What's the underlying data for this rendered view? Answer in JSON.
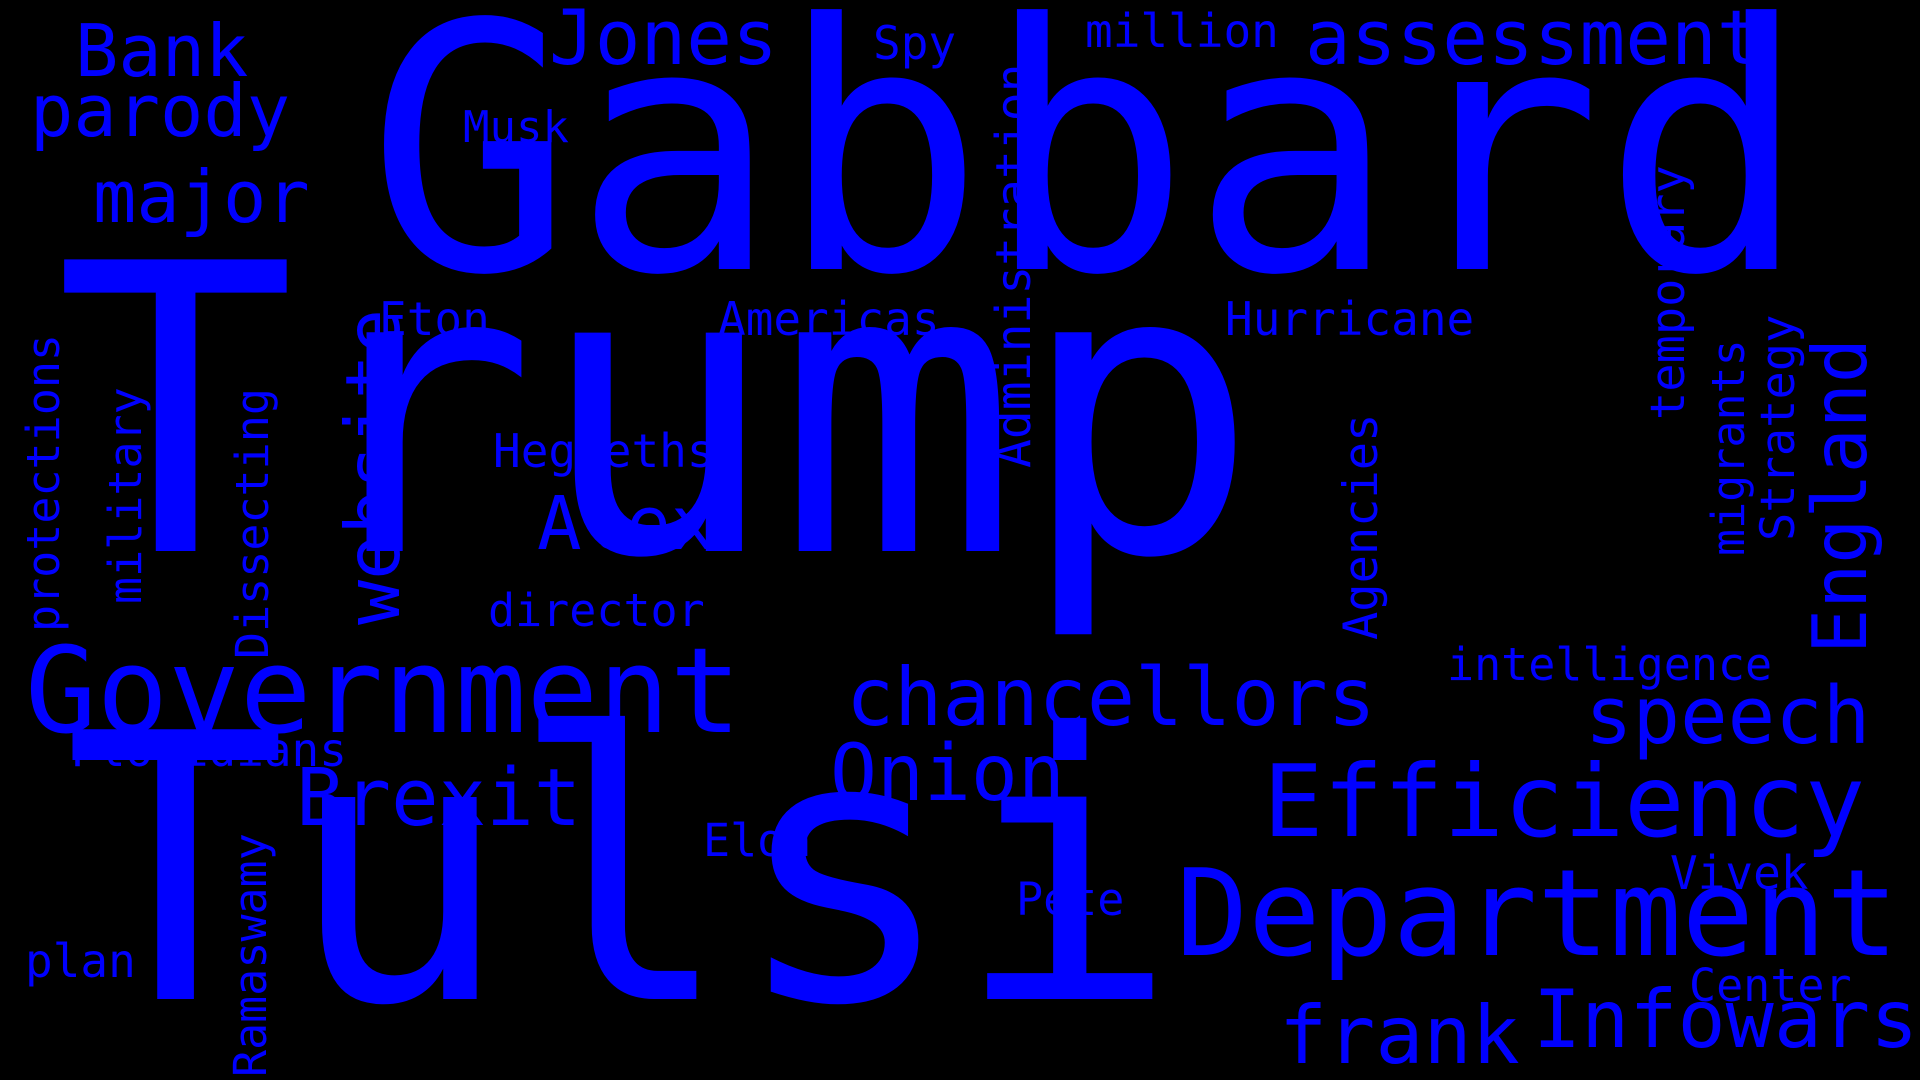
{
  "colors": {
    "background": "#000000",
    "text": "#0000FF"
  },
  "words": {
    "gabbard": "Gabbard",
    "trump": "Trump",
    "tulsi": "Tulsi",
    "government": "Government",
    "department": "Department",
    "efficiency": "Efficiency",
    "chancellors": "chancellors",
    "infowars": "Infowars",
    "brexit": "Brexit",
    "onion": "Onion",
    "speech": "speech",
    "frank": "frank",
    "alex": "Alex",
    "jones": "Jones",
    "assessment": "assessment",
    "parody": "parody",
    "bank": "Bank",
    "major": "major",
    "website": "website",
    "england": "England",
    "million": "million",
    "spy": "Spy",
    "musk": "Musk",
    "eton": "Eton",
    "americas": "Americas",
    "hurricane": "Hurricane",
    "hegseths": "Hegseths",
    "director": "director",
    "intelligence": "intelligence",
    "floridians": "Floridians",
    "elon": "Elon",
    "pete": "Pete",
    "vivek": "Vivek",
    "center": "Center",
    "plan": "plan",
    "administration": "Administration",
    "temporary": "temporary",
    "migrants": "migrants",
    "strategy": "Strategy",
    "agencies": "Agencies",
    "protections": "protections",
    "military": "military",
    "dissecting": "Dissecting",
    "ramaswamy": "Ramaswamy"
  }
}
